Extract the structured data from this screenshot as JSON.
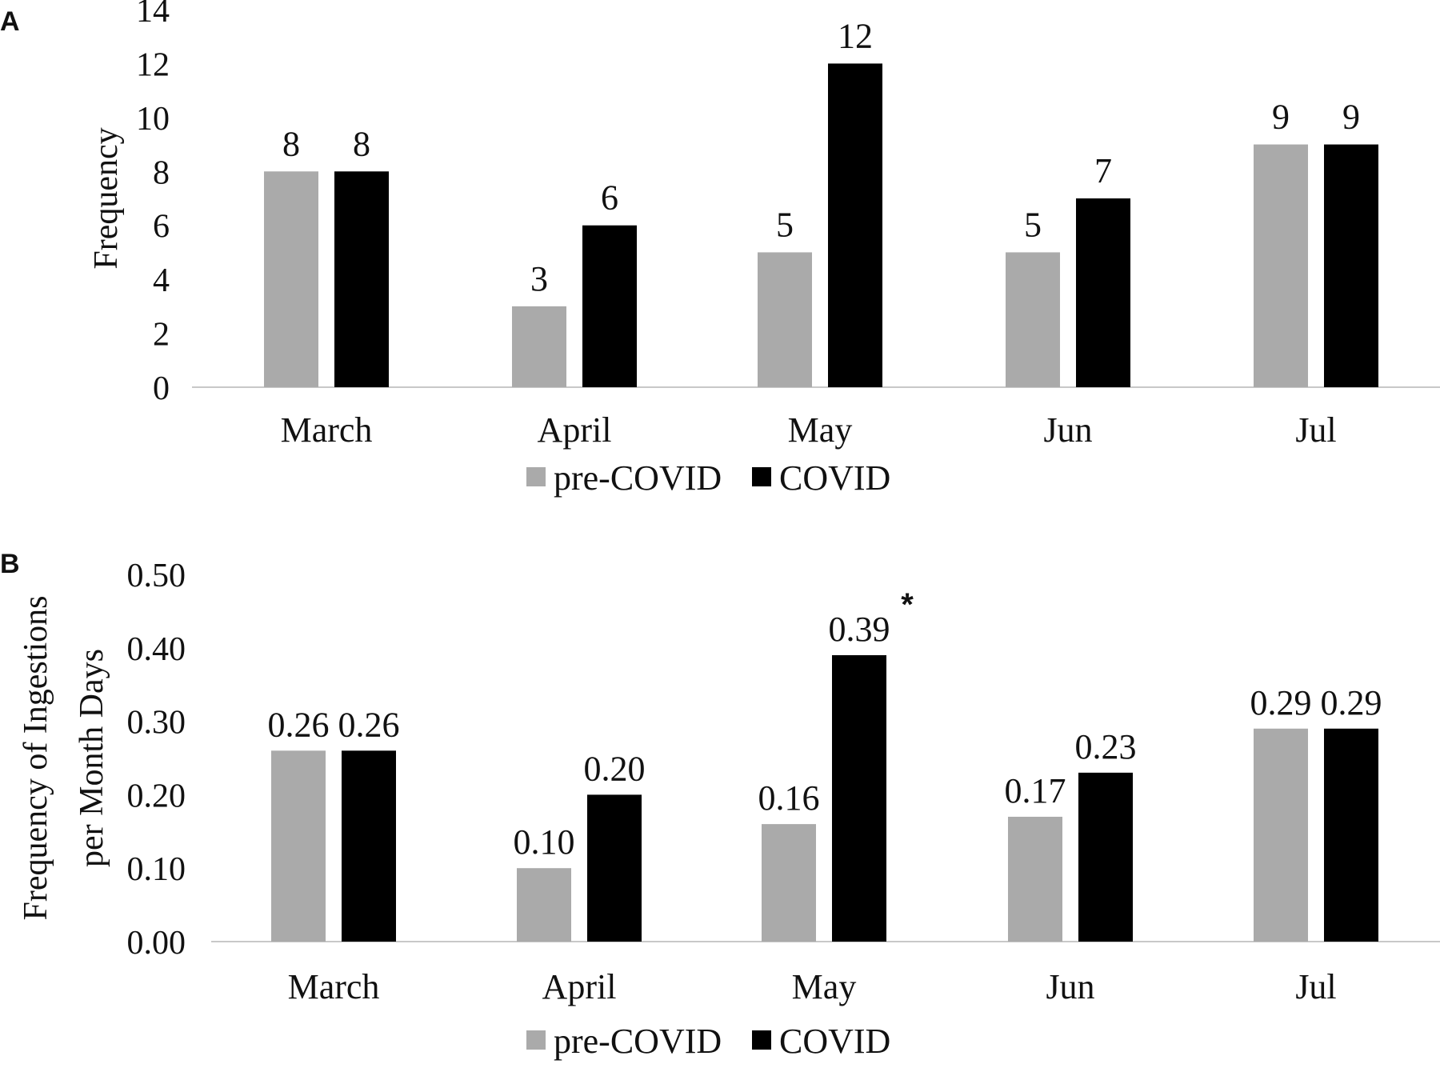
{
  "chart_data": [
    {
      "panel": "A",
      "type": "bar",
      "categories": [
        "March",
        "April",
        "May",
        "Jun",
        "Jul"
      ],
      "series": [
        {
          "name": "pre-COVID",
          "values": [
            8,
            3,
            5,
            5,
            9
          ],
          "color": "#aaaaaa"
        },
        {
          "name": "COVID",
          "values": [
            8,
            6,
            12,
            7,
            9
          ],
          "color": "#000000"
        }
      ],
      "value_labels": [
        [
          "8",
          "3",
          "5",
          "5",
          "9"
        ],
        [
          "8",
          "6",
          "12",
          "7",
          "9"
        ]
      ],
      "ylabel": "Frequency",
      "xlabel": "",
      "ylim": [
        0,
        14
      ],
      "yticks": [
        0,
        2,
        4,
        6,
        8,
        10,
        12,
        14
      ],
      "ytick_labels": [
        "0",
        "2",
        "4",
        "6",
        "8",
        "10",
        "12",
        "14"
      ],
      "grid": false,
      "legend": "bottom"
    },
    {
      "panel": "B",
      "type": "bar",
      "categories": [
        "March",
        "April",
        "May",
        "Jun",
        "Jul"
      ],
      "series": [
        {
          "name": "pre-COVID",
          "values": [
            0.26,
            0.1,
            0.16,
            0.17,
            0.29
          ],
          "color": "#aaaaaa"
        },
        {
          "name": "COVID",
          "values": [
            0.26,
            0.2,
            0.39,
            0.23,
            0.29
          ],
          "color": "#000000"
        }
      ],
      "value_labels": [
        [
          "0.26",
          "0.10",
          "0.16",
          "0.17",
          "0.29"
        ],
        [
          "0.26",
          "0.20",
          "0.39",
          "0.23",
          "0.29"
        ]
      ],
      "ylabel_lines": [
        "Frequency of Ingestions",
        "per Month Days"
      ],
      "xlabel": "",
      "ylim": [
        0,
        0.5
      ],
      "yticks": [
        0,
        0.1,
        0.2,
        0.3,
        0.4,
        0.5
      ],
      "ytick_labels": [
        "0.00",
        "0.10",
        "0.20",
        "0.30",
        "0.40",
        "0.50"
      ],
      "annotations": [
        {
          "text": "*",
          "category": "May",
          "series": "COVID"
        }
      ],
      "grid": false,
      "legend": "bottom"
    }
  ]
}
